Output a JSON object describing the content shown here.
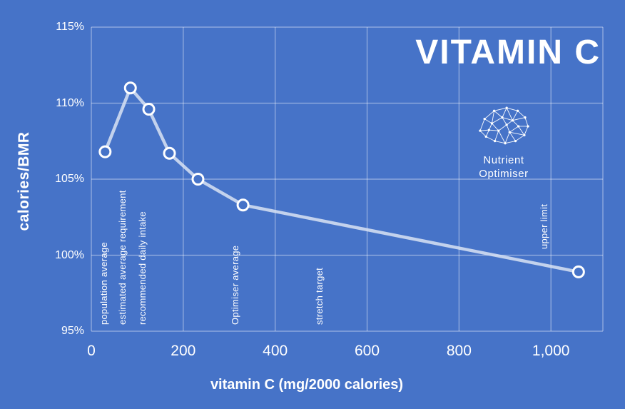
{
  "app": {
    "background": "#4673c8",
    "grid_color": "#ffffff",
    "grid_opacity": 0.45
  },
  "logo": {
    "icon": "brain-network-icon",
    "line1": "Nutrient",
    "line2": "Optimiser"
  },
  "chart_data": {
    "type": "line",
    "title": "VITAMIN C",
    "xlabel": "vitamin C (mg/2000 calories)",
    "ylabel": "calories/BMR",
    "x": [
      30,
      85,
      125,
      170,
      232,
      330,
      1060
    ],
    "y": [
      106.8,
      111.0,
      109.6,
      106.7,
      105.0,
      103.3,
      98.9
    ],
    "xlim": [
      0,
      1113
    ],
    "ylim": [
      95,
      115
    ],
    "grid": true,
    "legend": "none",
    "line_color": "#d9e3f3",
    "marker": "open-circle",
    "marker_stroke": "#ffffff",
    "x_ticks": [
      {
        "v": 0,
        "label": "0"
      },
      {
        "v": 200,
        "label": "200"
      },
      {
        "v": 400,
        "label": "400"
      },
      {
        "v": 600,
        "label": "600"
      },
      {
        "v": 800,
        "label": "800"
      },
      {
        "v": 1000,
        "label": "1,000"
      }
    ],
    "y_ticks": [
      {
        "v": 95,
        "label": "95%"
      },
      {
        "v": 100,
        "label": "100%"
      },
      {
        "v": 105,
        "label": "105%"
      },
      {
        "v": 110,
        "label": "110%"
      },
      {
        "v": 115,
        "label": "115%"
      }
    ],
    "annotations": [
      {
        "label": "population average",
        "x": 28,
        "baseline": 95.4
      },
      {
        "label": "estimated average requirement",
        "x": 68,
        "baseline": 95.4
      },
      {
        "label": "recommended daily intake",
        "x": 112,
        "baseline": 95.4
      },
      {
        "label": "Optimiser average",
        "x": 313,
        "baseline": 95.4
      },
      {
        "label": "stretch target",
        "x": 497,
        "baseline": 95.4
      },
      {
        "label": "upper limit",
        "x": 985,
        "baseline": 100.4
      }
    ]
  }
}
